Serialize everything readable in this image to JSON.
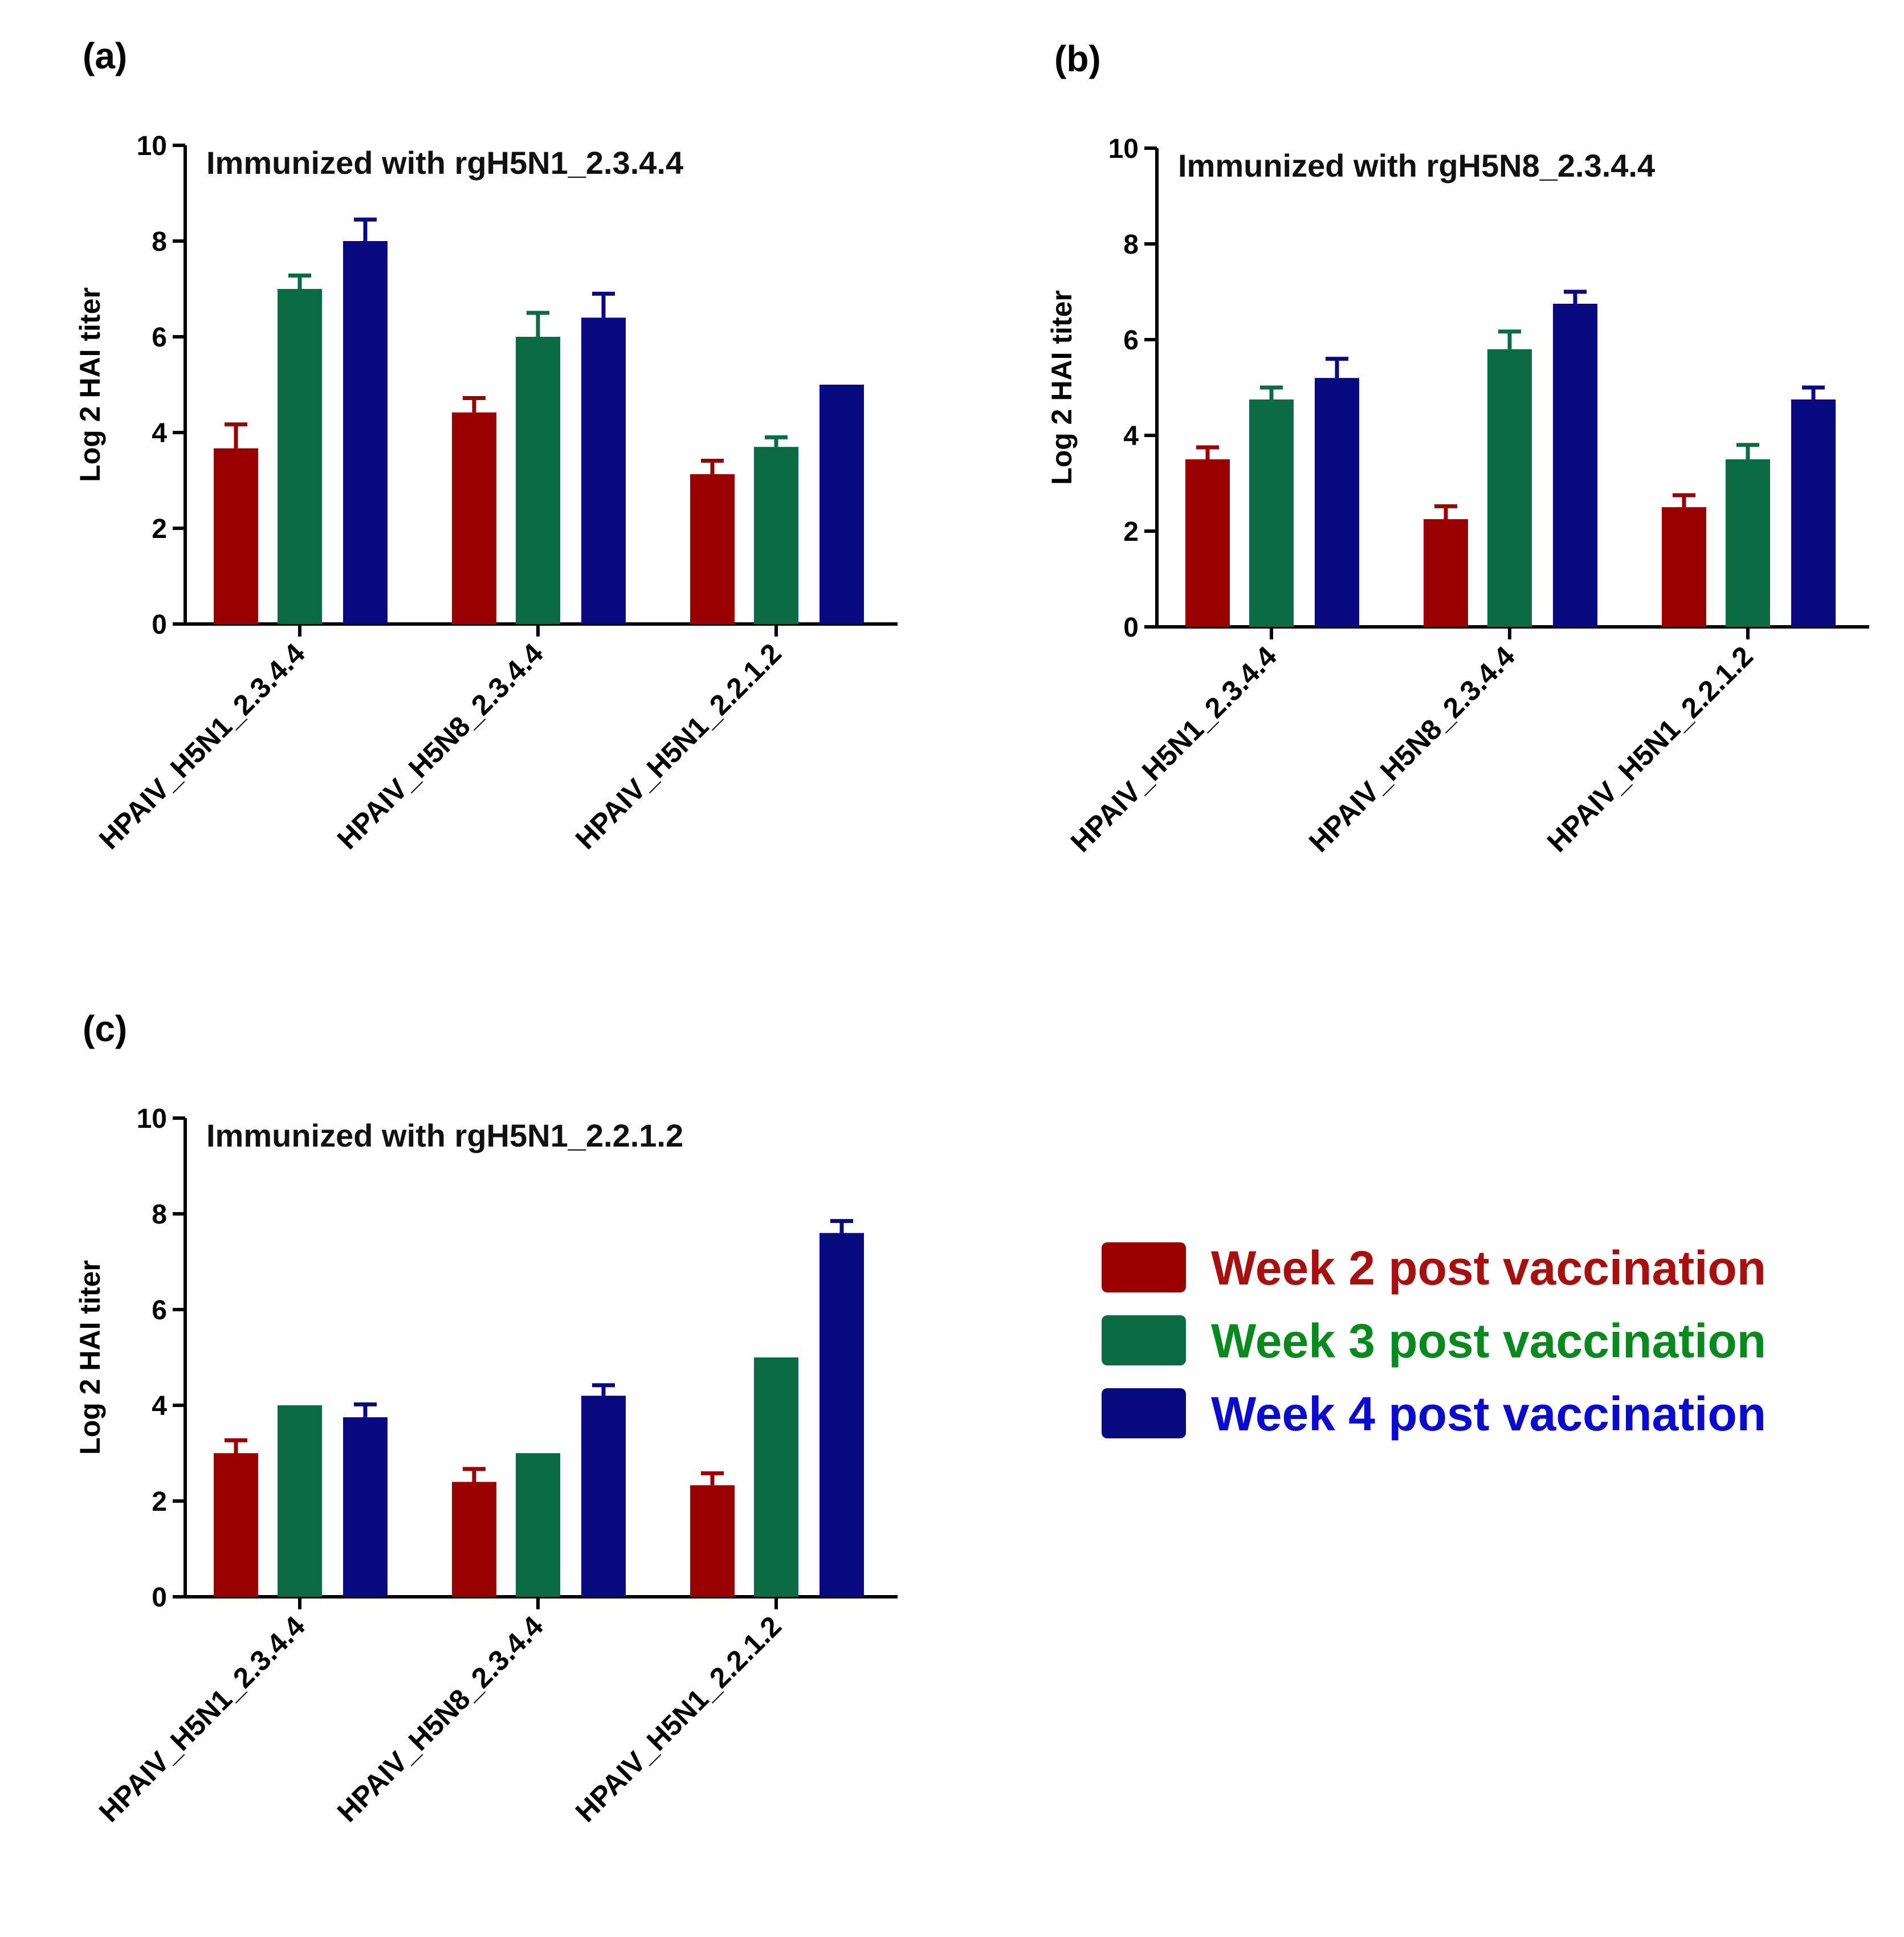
{
  "legend": [
    {
      "label": "Week 2 post vaccination",
      "color": "#9b0000",
      "text_color": "#a80f0f"
    },
    {
      "label": "Week 3 post vaccination",
      "color": "#0b6b45",
      "text_color": "#0a8a1e"
    },
    {
      "label": "Week 4 post vaccination",
      "color": "#0a0a80",
      "text_color": "#0a0ad0"
    }
  ],
  "chart_data": [
    {
      "type": "bar",
      "panel": "(a)",
      "title": "Immunized with rgH5N1_2.3.4.4",
      "ylabel": "Log 2 HAI titer",
      "ylim": [
        0,
        10
      ],
      "yticks": [
        "0",
        "2",
        "4",
        "6",
        "8",
        "10"
      ],
      "categories": [
        "HPAIV_H5N1_2.3.4.4",
        "HPAIV_H5N8_2.3.4.4",
        "HPAIV_H5N1_2.2.1.2"
      ],
      "series": [
        {
          "name": "Week 2 post vaccination",
          "values": [
            3.67,
            4.42,
            3.13
          ],
          "errors": [
            0.5,
            0.3,
            0.28
          ]
        },
        {
          "name": "Week 3 post vaccination",
          "values": [
            7.0,
            6.0,
            3.7
          ],
          "errors": [
            0.28,
            0.5,
            0.2
          ]
        },
        {
          "name": "Week 4 post vaccination",
          "values": [
            8.0,
            6.4,
            5.0
          ],
          "errors": [
            0.45,
            0.5,
            0
          ]
        }
      ]
    },
    {
      "type": "bar",
      "panel": "(b)",
      "title": "Immunized with rgH5N8_2.3.4.4",
      "ylabel": "Log 2 HAI titer",
      "ylim": [
        0,
        10
      ],
      "yticks": [
        "0",
        "2",
        "4",
        "6",
        "8",
        "10"
      ],
      "categories": [
        "HPAIV_H5N1_2.3.4.4",
        "HPAIV_H5N8_2.3.4.4",
        "HPAIV_H5N1_2.2.1.2"
      ],
      "series": [
        {
          "name": "Week 2 post vaccination",
          "values": [
            3.5,
            2.25,
            2.5
          ],
          "errors": [
            0.25,
            0.27,
            0.25
          ]
        },
        {
          "name": "Week 3 post vaccination",
          "values": [
            4.75,
            5.8,
            3.5
          ],
          "errors": [
            0.25,
            0.37,
            0.3
          ]
        },
        {
          "name": "Week 4 post vaccination",
          "values": [
            5.2,
            6.75,
            4.75
          ],
          "errors": [
            0.4,
            0.25,
            0.25
          ]
        }
      ]
    },
    {
      "type": "bar",
      "panel": "(c)",
      "title": "Immunized with rgH5N1_2.2.1.2",
      "ylabel": "Log 2 HAI titer",
      "ylim": [
        0,
        10
      ],
      "yticks": [
        "0",
        "2",
        "4",
        "6",
        "8",
        "10"
      ],
      "categories": [
        "HPAIV_H5N1_2.3.4.4",
        "HPAIV_H5N8_2.3.4.4",
        "HPAIV_H5N1_2.2.1.2"
      ],
      "series": [
        {
          "name": "Week 2 post vaccination",
          "values": [
            3.0,
            2.4,
            2.33
          ],
          "errors": [
            0.27,
            0.27,
            0.25
          ]
        },
        {
          "name": "Week 3 post vaccination",
          "values": [
            4.0,
            3.0,
            5.0
          ],
          "errors": [
            0,
            0,
            0
          ]
        },
        {
          "name": "Week 4 post vaccination",
          "values": [
            3.75,
            4.2,
            7.6
          ],
          "errors": [
            0.27,
            0.22,
            0.25
          ]
        }
      ]
    }
  ]
}
